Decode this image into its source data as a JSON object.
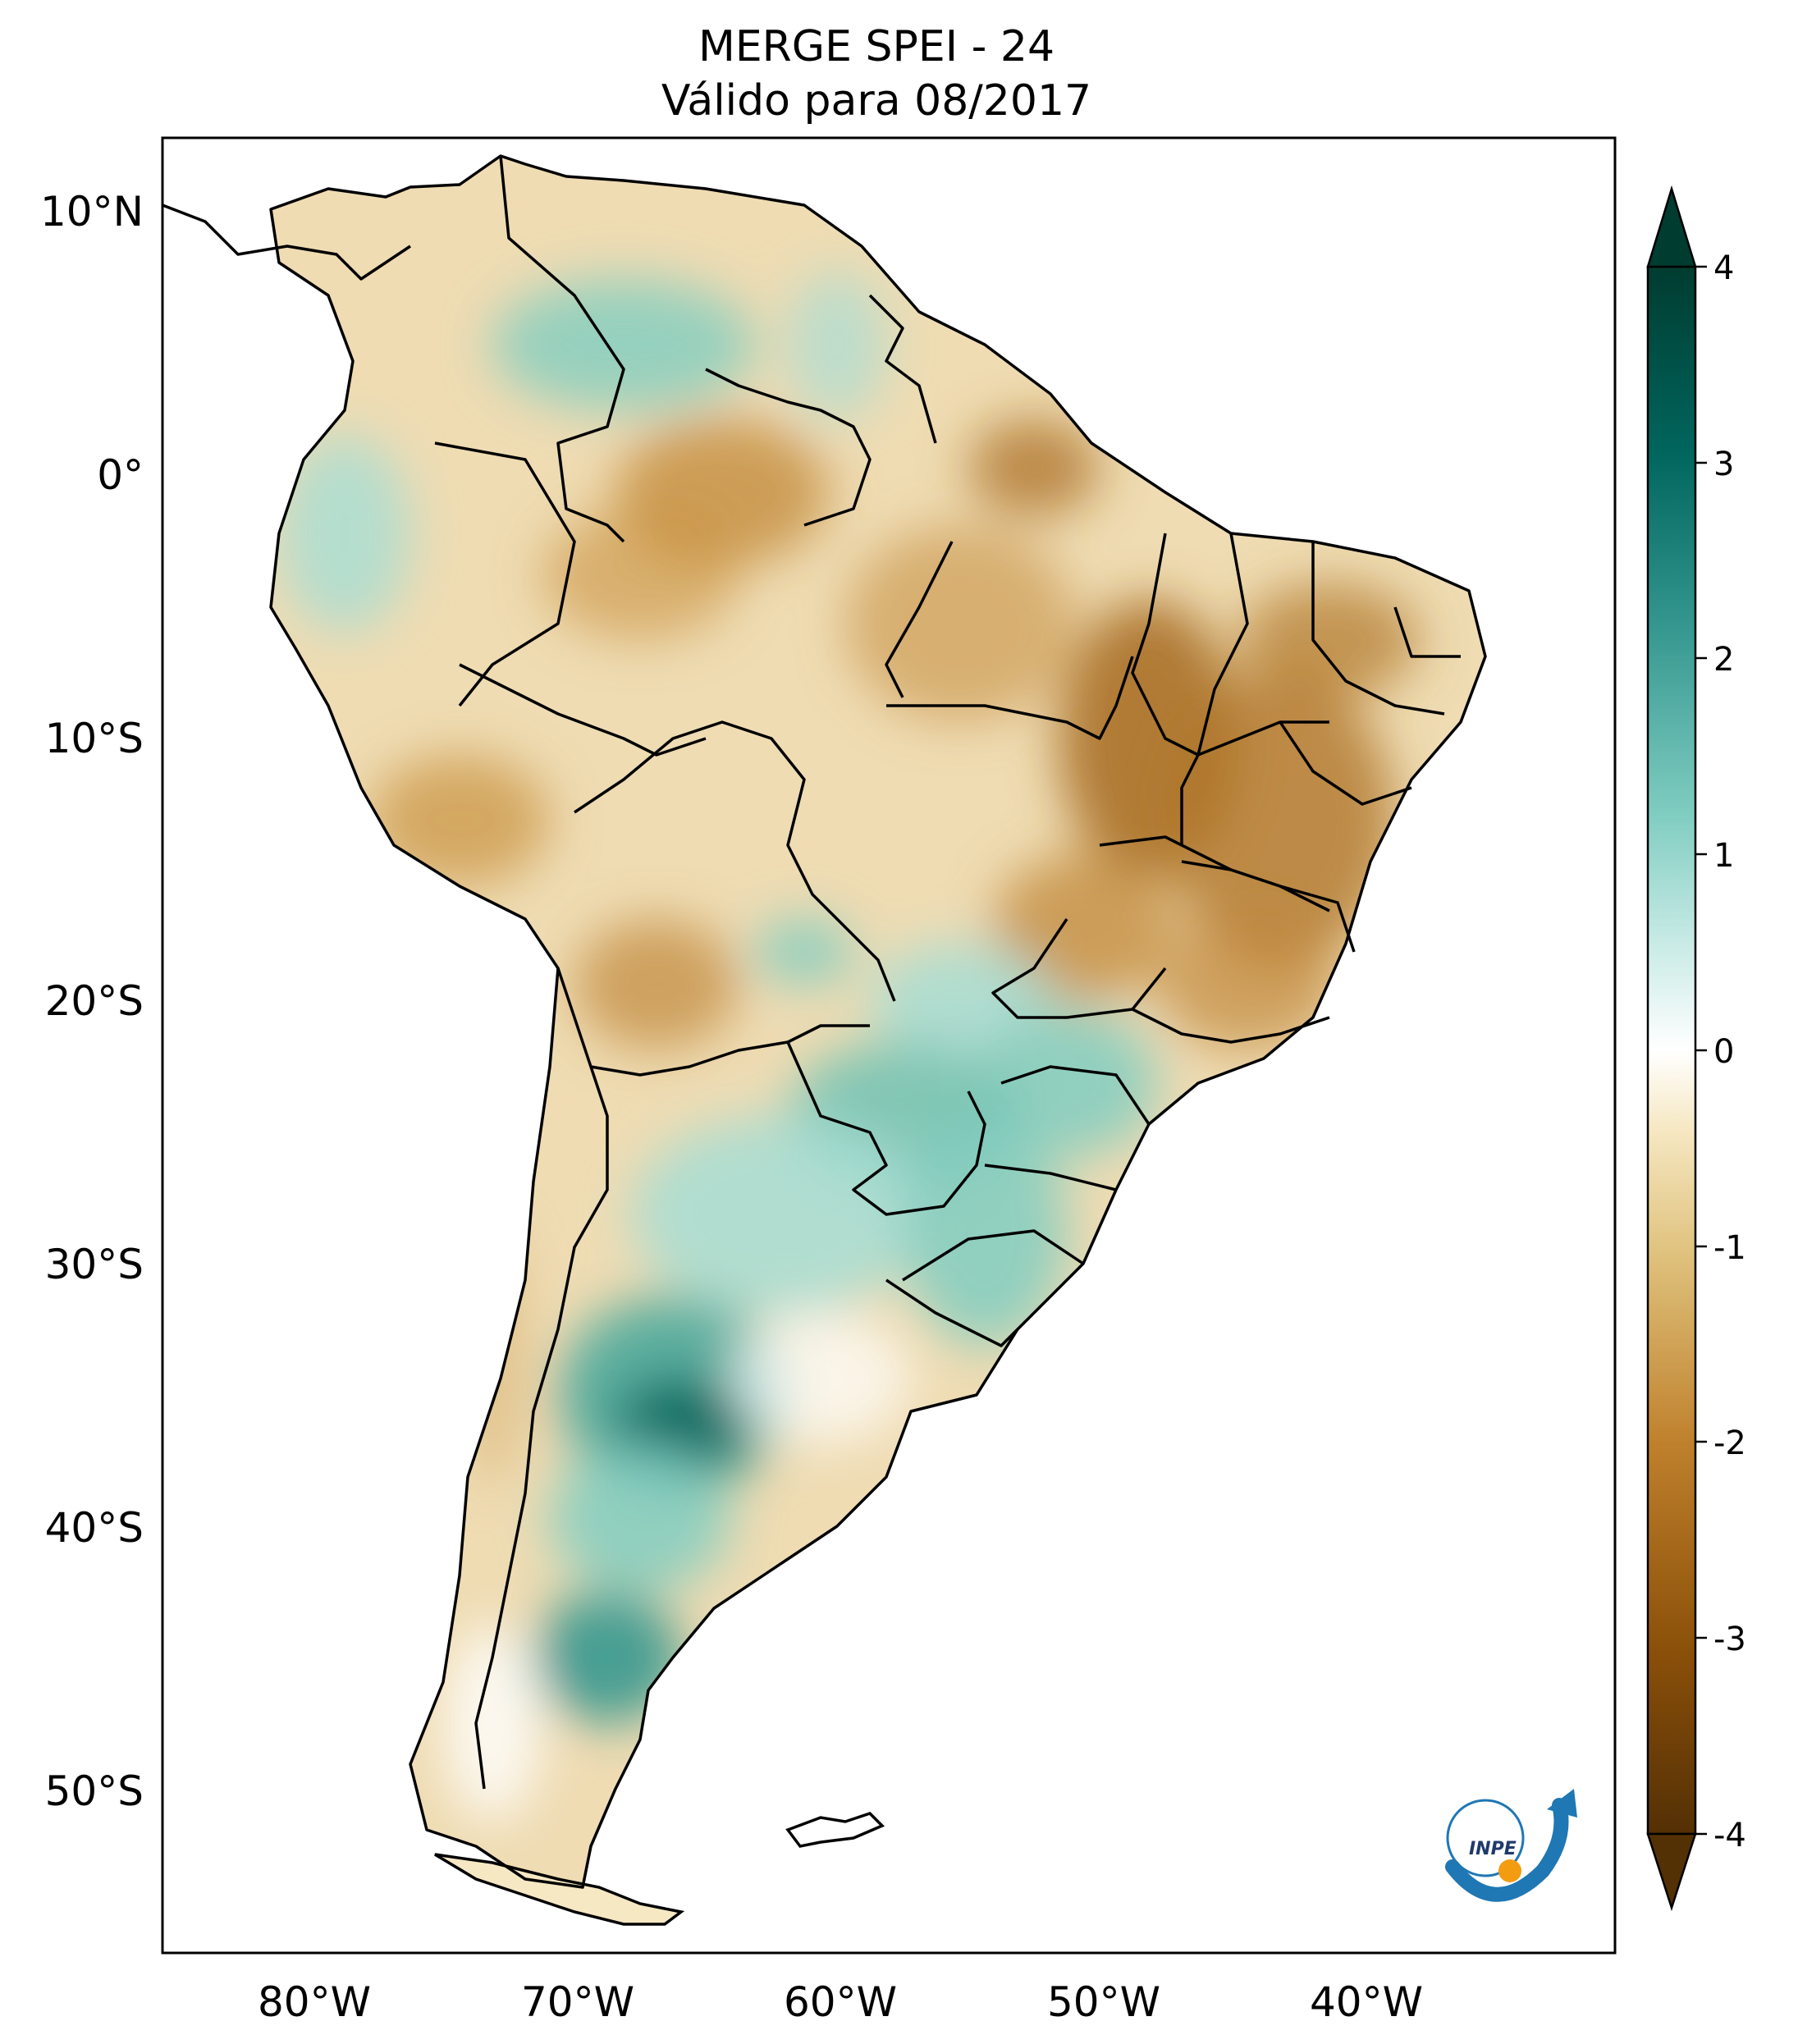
{
  "title": {
    "line1": "MERGE   SPEI - 24",
    "line2": "Válido para 08/2017"
  },
  "map": {
    "lon_ticks": [
      "80°W",
      "70°W",
      "60°W",
      "50°W",
      "40°W"
    ],
    "lat_ticks": [
      "10°N",
      "0°",
      "10°S",
      "20°S",
      "30°S",
      "40°S",
      "50°S"
    ]
  },
  "colorbar": {
    "ticks": [
      "4",
      "3",
      "2",
      "1",
      "0",
      "-1",
      "-2",
      "-3",
      "-4"
    ],
    "range": [
      -4,
      4
    ],
    "colors": [
      "#543005",
      "#8c510a",
      "#bf812d",
      "#dfc27d",
      "#f6e8c3",
      "#ffffff",
      "#c7eae5",
      "#80cdc1",
      "#35978f",
      "#01665e",
      "#003c30"
    ]
  },
  "logo": {
    "text": "INPE"
  }
}
